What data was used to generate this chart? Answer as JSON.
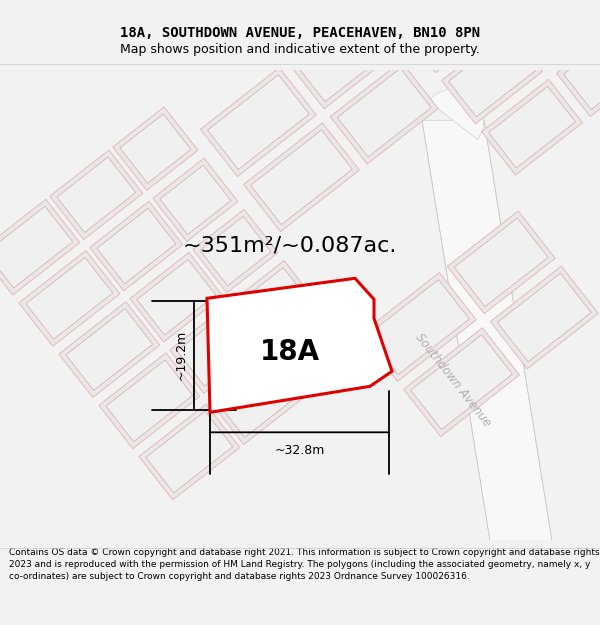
{
  "title_line1": "18A, SOUTHDOWN AVENUE, PEACEHAVEN, BN10 8PN",
  "title_line2": "Map shows position and indicative extent of the property.",
  "area_text": "~351m²/~0.087ac.",
  "label_18A": "18A",
  "dim_width": "~32.8m",
  "dim_height": "~19.2m",
  "street_label": "Southdown Avenue",
  "footer_text": "Contains OS data © Crown copyright and database right 2021. This information is subject to Crown copyright and database rights 2023 and is reproduced with the permission of HM Land Registry. The polygons (including the associated geometry, namely x, y co-ordinates) are subject to Crown copyright and database rights 2023 Ordnance Survey 100026316.",
  "bg_color": "#f2f2f2",
  "map_bg": "#ffffff",
  "building_fill": "#e8e8e8",
  "building_fill2": "#f0f0f0",
  "building_stroke": "#e8b8b8",
  "building_stroke2": "#d8a8a8",
  "road_fill": "#ffffff",
  "road_edge": "#d0d0d0",
  "red_plot_color": "#e00000",
  "street_text_color": "#b0b0b0",
  "title_fontsize": 10,
  "subtitle_fontsize": 9,
  "area_fontsize": 16,
  "label_fontsize": 20,
  "footer_fontsize": 6.5
}
